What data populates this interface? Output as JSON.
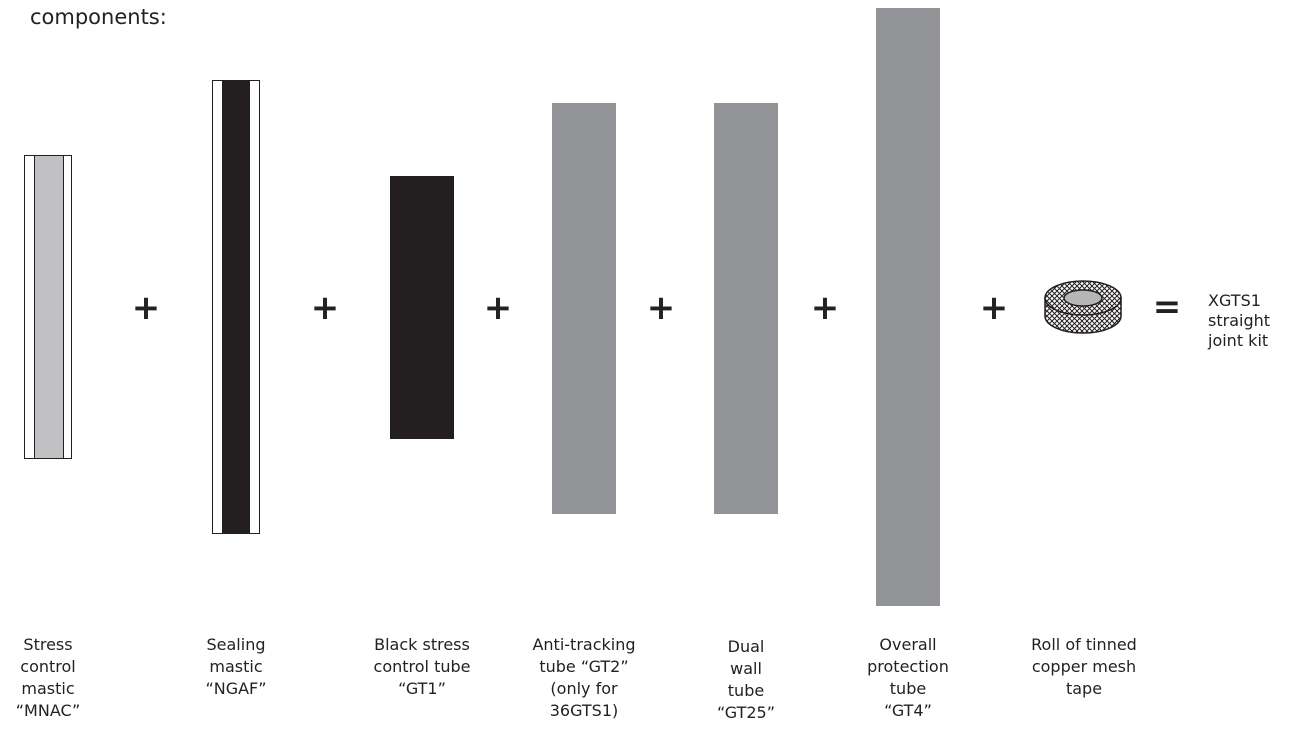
{
  "heading": "components:",
  "components": [
    {
      "caption": "Stress\ncontrol\nmastic\n“MNAC”"
    },
    {
      "caption": "Sealing\nmastic\n“NGAF”"
    },
    {
      "caption": "Black stress\ncontrol tube\n“GT1”"
    },
    {
      "caption": "Anti-tracking\ntube “GT2”\n(only for\n36GTS1)"
    },
    {
      "caption": "Dual\nwall\ntube\n“GT25”"
    },
    {
      "caption": "Overall\nprotection\ntube\n“GT4”"
    },
    {
      "caption": "Roll of tinned\ncopper mesh\ntape"
    }
  ],
  "operators": [
    "+",
    "+",
    "+",
    "+",
    "+",
    "+",
    "="
  ],
  "result": "XGTS1\nstraight\njoint kit",
  "colors": {
    "tube_gray": "#929396",
    "mastic_black": "#231f20",
    "mastic_light_gray": "#c0c1c3"
  }
}
